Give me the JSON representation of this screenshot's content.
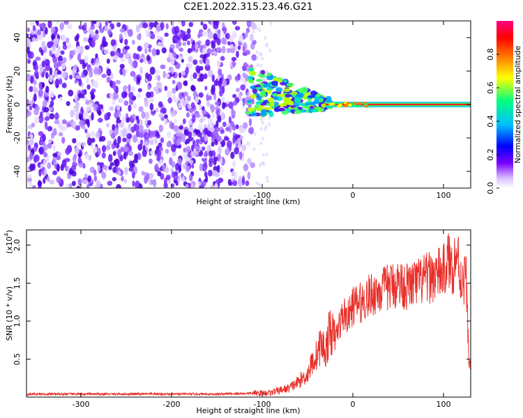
{
  "title": "C2E1.2022.315.23.46.G21",
  "colors": {
    "snr_line": "#e8302a",
    "cloud_dark": "#5a10e0",
    "cloud_light": "#d8c0ff",
    "line_core": "#ff2020"
  },
  "chart_data": [
    {
      "type": "heatmap",
      "title": "",
      "xlabel": "Height of straight line (km)",
      "ylabel": "Frequency (Hz)",
      "xlim": [
        -360,
        130
      ],
      "ylim": [
        -50,
        50
      ],
      "x_ticks": [
        -300,
        -200,
        -100,
        0,
        100
      ],
      "x_tick_labels": [
        "-300",
        "-200",
        "-100",
        "0",
        "100"
      ],
      "y_ticks": [
        -40,
        -20,
        0,
        20,
        40
      ],
      "y_tick_labels": [
        "-40",
        "-20",
        "0",
        "20",
        "40"
      ],
      "colorbar": {
        "label": "Normalized spectral amplitude",
        "range": [
          0,
          1
        ],
        "ticks": [
          0.0,
          0.2,
          0.4,
          0.6,
          0.8
        ],
        "tick_labels": [
          "0.0",
          "0.2",
          "0.4",
          "0.6",
          "0.8"
        ],
        "colormap": [
          "#ffffff",
          "#d8c0ff",
          "#7a00ff",
          "#0000ff",
          "#00c0ff",
          "#00ff80",
          "#ffff00",
          "#ff8000",
          "#ff0000",
          "#ff0080"
        ]
      },
      "description_features": {
        "noise_region_x": [
          -360,
          -110
        ],
        "transition_x": [
          -115,
          -30
        ],
        "stable_line_x": [
          -30,
          130
        ],
        "stable_line_frequency": 0
      }
    },
    {
      "type": "line",
      "title": "",
      "xlabel": "Height of straight line (km)",
      "ylabel": "SNR (10 * v/v)",
      "y_multiplier_label": "(x10",
      "y_multiplier_exp": "4",
      "xlim": [
        -360,
        130
      ],
      "ylim": [
        0,
        2.2
      ],
      "x_ticks": [
        -300,
        -200,
        -100,
        0,
        100
      ],
      "x_tick_labels": [
        "-300",
        "-200",
        "-100",
        "0",
        "100"
      ],
      "y_ticks": [
        0.5,
        1.0,
        1.5,
        2.0
      ],
      "y_tick_labels": [
        "0.5",
        "1.0",
        "1.5",
        "2.0"
      ],
      "series": [
        {
          "x": [
            -360,
            -300,
            -200,
            -150,
            -110,
            -90,
            -70,
            -60,
            -50,
            -45,
            -40,
            -35,
            -30,
            -25,
            -20,
            -15,
            -10,
            -5,
            0,
            10,
            20,
            30,
            40,
            50,
            60,
            70,
            80,
            90,
            100,
            105,
            110,
            115,
            120,
            125,
            128
          ],
          "y": [
            0.04,
            0.04,
            0.04,
            0.04,
            0.05,
            0.06,
            0.12,
            0.2,
            0.3,
            0.45,
            0.55,
            0.7,
            0.6,
            0.9,
            0.75,
            0.95,
            1.1,
            1.05,
            1.2,
            1.25,
            1.35,
            1.4,
            1.45,
            1.5,
            1.45,
            1.5,
            1.55,
            1.6,
            1.65,
            1.8,
            1.7,
            1.9,
            1.5,
            1.6,
            0.45
          ]
        }
      ]
    }
  ]
}
